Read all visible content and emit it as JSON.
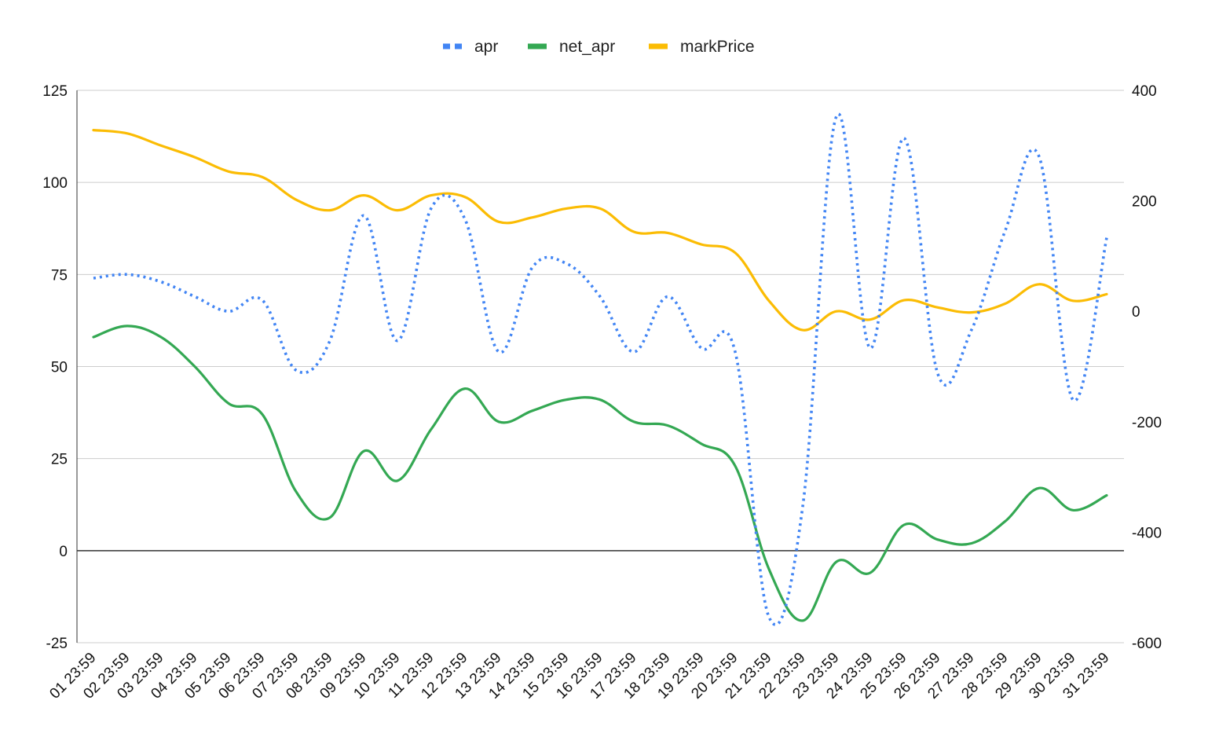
{
  "chart_data": {
    "type": "line",
    "title": "",
    "xlabel": "",
    "ylabel": "",
    "categories": [
      "01 23:59",
      "02 23:59",
      "03 23:59",
      "04 23:59",
      "05 23:59",
      "06 23:59",
      "07 23:59",
      "08 23:59",
      "09 23:59",
      "10 23:59",
      "11 23:59",
      "12 23:59",
      "13 23:59",
      "14 23:59",
      "15 23:59",
      "16 23:59",
      "17 23:59",
      "18 23:59",
      "19 23:59",
      "20 23:59",
      "21 23:59",
      "22 23:59",
      "23 23:59",
      "24 23:59",
      "25 23:59",
      "26 23:59",
      "27 23:59",
      "28 23:59",
      "29 23:59",
      "30 23:59",
      "31 23:59"
    ],
    "left_axis": {
      "min": -25,
      "max": 125,
      "ticks": [
        -25,
        0,
        25,
        50,
        75,
        100,
        125
      ]
    },
    "right_axis": {
      "min": -600,
      "max": 400,
      "ticks": [
        -600,
        -400,
        -200,
        0,
        200,
        400
      ]
    },
    "grid": true,
    "legend_position": "top",
    "series": [
      {
        "name": "apr",
        "axis": "left",
        "color": "#4285F4",
        "style": "dotted",
        "values": [
          74,
          75,
          73,
          69,
          65,
          68,
          49,
          57,
          91,
          57,
          93,
          90,
          54,
          77,
          78,
          69,
          54,
          69,
          55,
          54,
          -18,
          12,
          118,
          55,
          112,
          48,
          60,
          87,
          107,
          41,
          85
        ]
      },
      {
        "name": "net_apr",
        "axis": "left",
        "color": "#34A853",
        "style": "solid",
        "values": [
          58,
          61,
          58,
          50,
          40,
          37,
          16,
          9,
          27,
          19,
          33,
          44,
          35,
          38,
          41,
          41,
          35,
          34,
          29,
          23,
          -5,
          -19,
          -3,
          -6,
          7,
          3,
          2,
          8,
          17,
          11,
          15
        ]
      },
      {
        "name": "markPrice",
        "axis": "right",
        "color": "#FBBC04",
        "style": "solid",
        "values": [
          328,
          322,
          300,
          279,
          253,
          243,
          202,
          183,
          210,
          183,
          210,
          207,
          162,
          170,
          186,
          186,
          144,
          142,
          121,
          106,
          19,
          -34,
          0,
          -15,
          20,
          7,
          -2,
          14,
          49,
          19,
          31
        ]
      }
    ]
  }
}
